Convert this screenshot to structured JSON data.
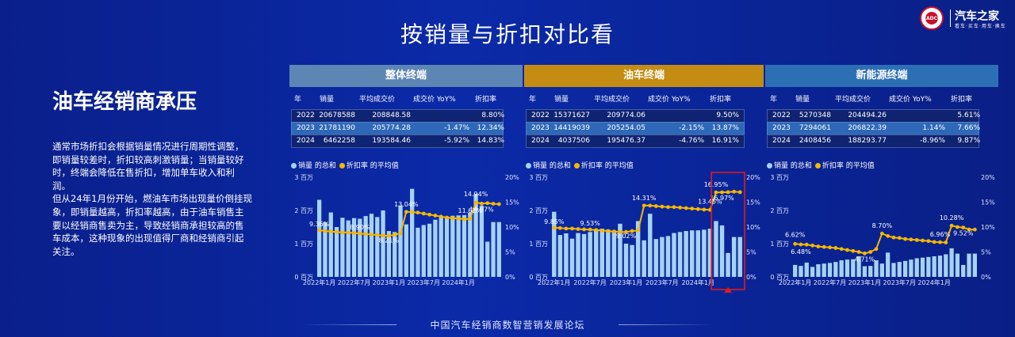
{
  "slide_title": "按销量与折扣对比看",
  "logo": {
    "seal_text": "CADCC",
    "brand": "汽车之家",
    "tagline": "看车·买车·用车·换车"
  },
  "left": {
    "heading": "油车经销商承压",
    "paragraphs": [
      "通常市场折扣会根据销量情况进行周期性调整，即销量较差时，折扣较高刺激销量；当销量较好时，终端会降低在售折扣，增加单车收入和利润。",
      "但从24年1月份开始，燃油车市场出现量价倒挂现象，即销量越高，折扣率越高，由于油车销售主要以经销商售卖为主，导致经销商承担较高的售车成本，这种现象的出现值得厂商和经销商引起关注。"
    ]
  },
  "footer": "中国汽车经销商数智营销发展论坛",
  "colors": {
    "bar": "#a6d2f2",
    "line": "#f5b800",
    "header_gray": "#5e86b4",
    "header_gold": "#c48c12",
    "header_blue": "#2d6fb5",
    "highlight": "#e11b1b"
  },
  "chart_data": [
    {
      "type": "bar+line",
      "title": "整体终端",
      "table": {
        "headers": [
          "年",
          "销量",
          "平均成交价",
          "成交价 YoY%",
          "折扣率"
        ],
        "rows": [
          [
            "2022",
            "20678588",
            "208848.58",
            "",
            "8.80%"
          ],
          [
            "2023",
            "21781190",
            "205774.28",
            "-1.47%",
            "12.34%"
          ],
          [
            "2024",
            "6462258",
            "193584.46",
            "-5.92%",
            "14.83%"
          ]
        ]
      },
      "legend": [
        "销量 的总和",
        "折扣率 的平均值"
      ],
      "y_left_ticks": [
        "3 百万",
        "2 百万",
        "1 百万",
        "0 百万"
      ],
      "y_right_ticks": [
        "20%",
        "15%",
        "10%",
        "5%",
        "0%"
      ],
      "x_ticks": [
        "2022年1月",
        "2022年7月",
        "2023年1月",
        "2023年7月",
        "2024年1月"
      ],
      "ylim_left": [
        0,
        3000000
      ],
      "ylim_right": [
        0,
        20
      ],
      "sales": [
        2320000,
        1640000,
        1940000,
        1500000,
        1780000,
        1700000,
        1770000,
        1750000,
        1830000,
        1900000,
        1800000,
        2000000,
        1380000,
        1350000,
        2150000,
        1580000,
        2650000,
        1480000,
        1560000,
        1600000,
        1720000,
        1790000,
        1820000,
        1840000,
        1850000,
        1860000,
        1930000,
        2500000,
        2140000,
        1060000,
        1650000,
        1650000
      ],
      "discount": [
        9.36,
        9.2,
        9.1,
        9.0,
        8.9,
        8.9,
        8.8,
        8.7,
        8.6,
        8.5,
        8.4,
        8.3,
        8.21,
        8.5,
        8.7,
        13.04,
        13.0,
        12.9,
        12.7,
        12.5,
        12.3,
        12.1,
        11.9,
        11.8,
        11.7,
        11.6,
        11.61,
        14.94,
        14.7,
        14.8,
        14.67,
        14.6
      ],
      "annotations": [
        "9.36%",
        "8.90%",
        "8.21%",
        "13.04%",
        "14.94%",
        "14.67%",
        "11.61%"
      ]
    },
    {
      "type": "bar+line",
      "title": "油车终端",
      "table": {
        "headers": [
          "年",
          "销量",
          "平均成交价",
          "成交价 YoY%",
          "折扣率"
        ],
        "rows": [
          [
            "2022",
            "15371627",
            "209774.06",
            "",
            "9.50%"
          ],
          [
            "2023",
            "14419039",
            "205254.05",
            "-2.15%",
            "13.87%"
          ],
          [
            "2024",
            "4037506",
            "195476.37",
            "-4.76%",
            "16.91%"
          ]
        ]
      },
      "legend": [
        "销量 的总和",
        "折扣率 的平均值"
      ],
      "y_left_ticks": [
        "3 百万",
        "2 百万",
        "1 百万",
        "0 百万"
      ],
      "y_right_ticks": [
        "20%",
        "15%",
        "10%",
        "5%",
        "0%"
      ],
      "x_ticks": [
        "2022年1月",
        "2022年7月",
        "2023年1月",
        "2023年7月",
        "2024年1月"
      ],
      "ylim_left": [
        0,
        3000000
      ],
      "ylim_right": [
        0,
        20
      ],
      "sales": [
        1960000,
        1260000,
        1310000,
        1150000,
        1320000,
        1290000,
        1350000,
        1400000,
        1450000,
        1420000,
        1400000,
        1600000,
        1000000,
        960000,
        1680000,
        1100000,
        1900000,
        1140000,
        1200000,
        1230000,
        1320000,
        1350000,
        1380000,
        1400000,
        1400000,
        1420000,
        1450000,
        1680000,
        1550000,
        720000,
        1200000,
        1200000
      ],
      "discount": [
        9.85,
        9.8,
        9.7,
        9.7,
        9.6,
        9.53,
        9.5,
        9.4,
        9.3,
        9.2,
        9.1,
        9.0,
        9.02,
        9.2,
        9.3,
        14.31,
        14.3,
        14.2,
        14.1,
        14.0,
        14.0,
        13.9,
        13.8,
        13.7,
        13.6,
        13.5,
        13.45,
        16.95,
        16.97,
        17.0,
        17.1,
        17.0
      ],
      "annotations": [
        "9.85%",
        "9.53%",
        "9.02%",
        "14.31%",
        "16.95%",
        "16.97%",
        "13.45%"
      ]
    },
    {
      "type": "bar+line",
      "title": "新能源终端",
      "table": {
        "headers": [
          "年",
          "销量",
          "平均成交价",
          "成交价 YoY%",
          "折扣率"
        ],
        "rows": [
          [
            "2022",
            "5270348",
            "204494.26",
            "",
            "5.61%"
          ],
          [
            "2023",
            "7294061",
            "206822.39",
            "1.14%",
            "7.66%"
          ],
          [
            "2024",
            "2408456",
            "188293.77",
            "-8.96%",
            "9.87%"
          ]
        ]
      },
      "legend": [
        "销量 的总和",
        "折扣率 的平均值"
      ],
      "y_left_ticks": [
        "3 百万",
        "2 百万",
        "1 百万",
        "0 百万"
      ],
      "y_right_ticks": [
        "20%",
        "15%",
        "10%",
        "5%",
        "0%"
      ],
      "x_ticks": [
        "2022年1月",
        "2022年7月",
        "2023年1月",
        "2023年7月",
        "2024年1月"
      ],
      "ylim_left": [
        0,
        3000000
      ],
      "ylim_right": [
        0,
        20
      ],
      "sales": [
        360000,
        330000,
        430000,
        300000,
        380000,
        400000,
        420000,
        450000,
        500000,
        520000,
        530000,
        620000,
        320000,
        330000,
        500000,
        400000,
        730000,
        420000,
        450000,
        480000,
        520000,
        560000,
        580000,
        600000,
        620000,
        640000,
        680000,
        860000,
        700000,
        360000,
        700000,
        700000
      ],
      "discount": [
        6.62,
        6.5,
        6.48,
        6.3,
        6.1,
        6.0,
        5.9,
        5.8,
        5.6,
        5.4,
        5.2,
        5.0,
        4.71,
        5.0,
        5.6,
        8.7,
        8.2,
        7.9,
        7.8,
        7.6,
        7.5,
        7.4,
        7.3,
        7.2,
        7.0,
        6.96,
        6.9,
        10.28,
        10.0,
        9.9,
        9.52,
        9.5
      ],
      "annotations": [
        "6.62%",
        "6.48%",
        "4.71%",
        "8.70%",
        "6.96%",
        "10.28%",
        "9.52%"
      ]
    }
  ]
}
